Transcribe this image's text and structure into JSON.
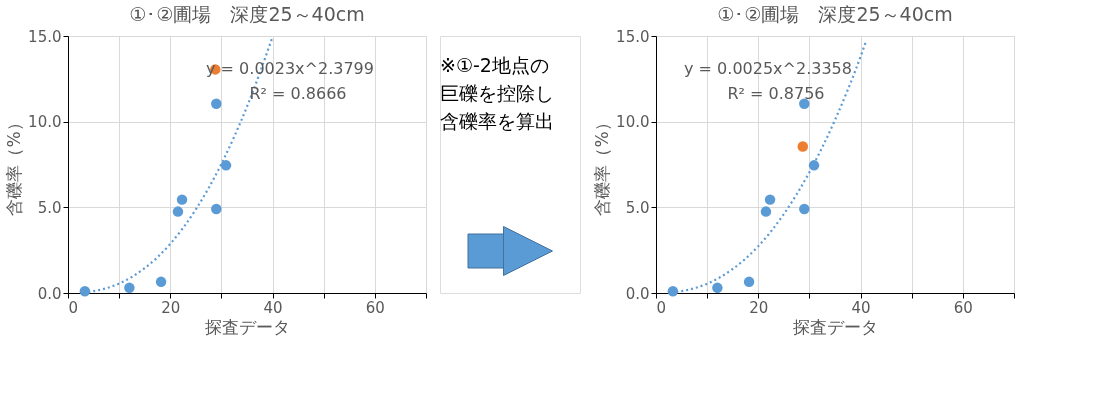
{
  "chart_data": [
    {
      "type": "scatter",
      "title": "①･②圃場　深度25～40cm",
      "xlabel": "探査データ",
      "ylabel": "含礫率（%）",
      "xlim": [
        0,
        70
      ],
      "ylim": [
        0,
        15
      ],
      "xticks": [
        0,
        {
          "value": 10,
          "label": null
        },
        20,
        {
          "value": 30,
          "label": null
        },
        40,
        {
          "value": 50,
          "label": null
        },
        60,
        {
          "value": 70,
          "label": null
        }
      ],
      "yticks": [
        {
          "value": 0,
          "label": "0.0"
        },
        {
          "value": 5,
          "label": "5.0"
        },
        {
          "value": 10,
          "label": "10.0"
        },
        {
          "value": 15,
          "label": "15.0"
        }
      ],
      "grid": true,
      "marker": "circle",
      "series": [
        {
          "type": "scatter",
          "color": "#5b9bd5",
          "x": [
            3.3,
            12.0,
            18.2,
            21.5,
            22.3,
            29.0,
            30.9,
            29.0
          ],
          "values": [
            0.1,
            0.3,
            0.65,
            4.75,
            5.45,
            4.9,
            7.45,
            11.05
          ]
        },
        {
          "type": "scatter",
          "color": "#ed7d31",
          "x": [
            28.8
          ],
          "values": [
            13.05
          ]
        },
        {
          "type": "line",
          "color": "#5b9bd5",
          "line_style": "dotted",
          "marker": "none",
          "x": [
            3,
            5,
            10,
            15,
            20,
            25,
            30,
            35,
            40
          ],
          "values": [
            0.03,
            0.11,
            0.55,
            1.45,
            2.87,
            4.88,
            7.54,
            10.88,
            14.95
          ]
        }
      ],
      "annotations": [
        "y = 0.0023x^2.3799",
        "R² = 0.8666"
      ]
    },
    {
      "type": "other",
      "annotations": [
        "※①-2地点の",
        "巨礫を控除し",
        "含礫率を算出"
      ]
    },
    {
      "type": "scatter",
      "title": "①･②圃場　深度25～40cm",
      "xlabel": "探査データ",
      "ylabel": "含礫率（%）",
      "xlim": [
        0,
        70
      ],
      "ylim": [
        0,
        15
      ],
      "xticks": [
        0,
        {
          "value": 10,
          "label": null
        },
        20,
        {
          "value": 30,
          "label": null
        },
        40,
        {
          "value": 50,
          "label": null
        },
        60,
        {
          "value": 70,
          "label": null
        }
      ],
      "yticks": [
        {
          "value": 0,
          "label": "0.0"
        },
        {
          "value": 5,
          "label": "5.0"
        },
        {
          "value": 10,
          "label": "10.0"
        },
        {
          "value": 15,
          "label": "15.0"
        }
      ],
      "grid": true,
      "marker": "circle",
      "series": [
        {
          "type": "scatter",
          "color": "#5b9bd5",
          "x": [
            3.3,
            12.0,
            18.2,
            21.5,
            22.3,
            29.0,
            30.9,
            29.0
          ],
          "values": [
            0.1,
            0.3,
            0.65,
            4.75,
            5.45,
            4.9,
            7.45,
            11.05
          ]
        },
        {
          "type": "scatter",
          "color": "#ed7d31",
          "x": [
            28.7
          ],
          "values": [
            8.55
          ]
        },
        {
          "type": "line",
          "color": "#5b9bd5",
          "line_style": "dotted",
          "marker": "none",
          "x": [
            3,
            5,
            10,
            15,
            20,
            25,
            30,
            35,
            40,
            41
          ],
          "values": [
            0.03,
            0.11,
            0.54,
            1.4,
            2.73,
            4.61,
            7.05,
            10.1,
            13.8,
            14.64
          ]
        }
      ],
      "annotations": [
        "y = 0.0025x^2.3358",
        "R² = 0.8756"
      ]
    }
  ]
}
